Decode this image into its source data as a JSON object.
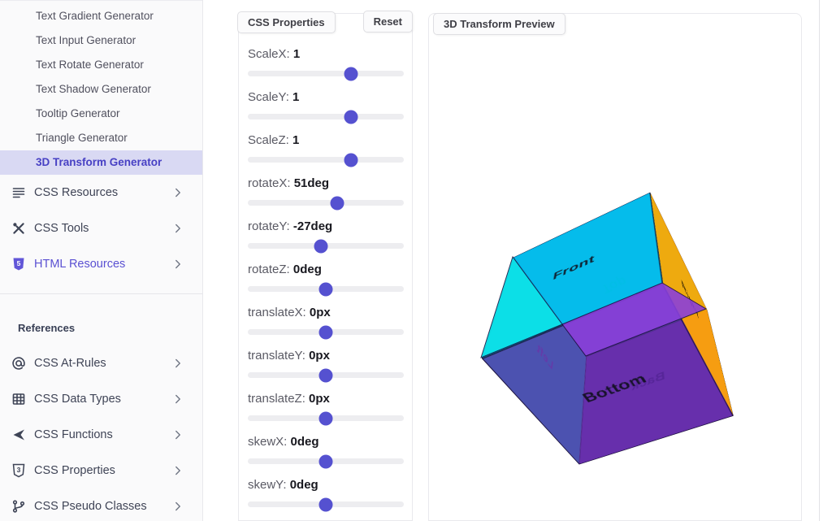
{
  "sidebar": {
    "generators": [
      {
        "label": "Text Gradient Generator",
        "active": false
      },
      {
        "label": "Text Input Generator",
        "active": false
      },
      {
        "label": "Text Rotate Generator",
        "active": false
      },
      {
        "label": "Text Shadow Generator",
        "active": false
      },
      {
        "label": "Tooltip Generator",
        "active": false
      },
      {
        "label": "Triangle Generator",
        "active": false
      },
      {
        "label": "3D Transform Generator",
        "active": true
      }
    ],
    "sections": [
      {
        "label": "CSS Resources",
        "icon": "list-icon",
        "accent": false
      },
      {
        "label": "CSS Tools",
        "icon": "tools-icon",
        "accent": false
      },
      {
        "label": "HTML Resources",
        "icon": "html5-icon",
        "accent": true
      }
    ],
    "references_title": "References",
    "references": [
      {
        "label": "CSS At-Rules",
        "icon": "at-icon"
      },
      {
        "label": "CSS Data Types",
        "icon": "table-icon"
      },
      {
        "label": "CSS Functions",
        "icon": "function-icon"
      },
      {
        "label": "CSS Properties",
        "icon": "css3-icon"
      },
      {
        "label": "CSS Pseudo Classes",
        "icon": "branch-icon"
      }
    ]
  },
  "properties_panel": {
    "title": "CSS Properties",
    "reset_label": "Reset",
    "sliders": [
      {
        "name": "ScaleX",
        "value": "1",
        "percent": 66
      },
      {
        "name": "ScaleY",
        "value": "1",
        "percent": 66
      },
      {
        "name": "ScaleZ",
        "value": "1",
        "percent": 66
      },
      {
        "name": "rotateX",
        "value": "51deg",
        "percent": 57.1
      },
      {
        "name": "rotateY",
        "value": "-27deg",
        "percent": 46.9
      },
      {
        "name": "rotateZ",
        "value": "0deg",
        "percent": 50
      },
      {
        "name": "translateX",
        "value": "0px",
        "percent": 50
      },
      {
        "name": "translateY",
        "value": "0px",
        "percent": 50
      },
      {
        "name": "translateZ",
        "value": "0px",
        "percent": 50
      },
      {
        "name": "skewX",
        "value": "0deg",
        "percent": 50
      },
      {
        "name": "skewY",
        "value": "0deg",
        "percent": 50
      }
    ]
  },
  "preview_panel": {
    "title": "3D Transform Preview",
    "cube": {
      "transform": "rotateX(51deg) rotateY(-27deg)",
      "faces": [
        {
          "name": "front",
          "label": "Front",
          "color": "rgba(0,183,241,0.88)",
          "label_color": "#0f2030"
        },
        {
          "name": "back",
          "label": "Back",
          "color": "rgba(110,14,204,0.80)",
          "label_color": "#3c1178"
        },
        {
          "name": "right",
          "label": "Right",
          "color": "rgba(255,165,0,0.92)",
          "label_color": "#241803"
        },
        {
          "name": "left",
          "label": "Left",
          "color": "rgba(0,222,229,0.94)",
          "label_color": "#7d6fc5"
        },
        {
          "name": "top",
          "label": "Top",
          "color": "rgba(0,214,170,0.85)",
          "label_color": "#10e59a"
        },
        {
          "name": "bottom",
          "label": "Bottom",
          "color": "rgba(92,42,160,0.78)",
          "label_color": "#17122a"
        }
      ],
      "highlight_colors": {
        "left_face_sheen": "#0ce0e6",
        "back_face_sheen": "#8a3eda"
      }
    }
  }
}
